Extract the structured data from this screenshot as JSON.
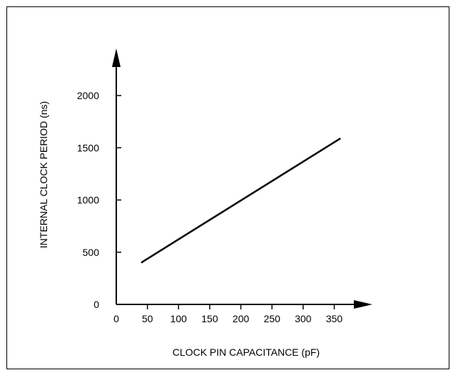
{
  "chart_data": {
    "type": "line",
    "title": "",
    "xlabel": "CLOCK PIN CAPACITANCE (pF)",
    "ylabel": "INTERNAL CLOCK PERIOD (ns)",
    "x_ticks": [
      "0",
      "50",
      "100",
      "150",
      "200",
      "250",
      "300",
      "350"
    ],
    "y_ticks": [
      "0",
      "500",
      "1000",
      "1500",
      "2000"
    ],
    "xlim": [
      0,
      350
    ],
    "ylim": [
      0,
      2000
    ],
    "grid": false,
    "series": [
      {
        "x": [
          40,
          360
        ],
        "y": [
          400,
          1590
        ],
        "color": "#000000"
      }
    ]
  }
}
